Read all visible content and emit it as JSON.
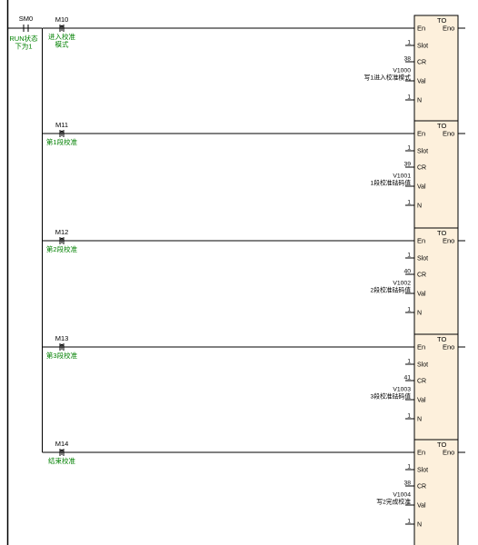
{
  "left_contact": {
    "name": "SM0",
    "comment_lines": [
      "RUN状态",
      "下为1"
    ]
  },
  "rungs": [
    {
      "contact": "M10",
      "comment_lines": [
        "进入校准",
        "模式"
      ],
      "block": {
        "title": "TO",
        "en": "En",
        "eno": "Eno",
        "pins": [
          {
            "label": "Slot",
            "values": [
              "1"
            ]
          },
          {
            "label": "CR",
            "values": [
              "38"
            ]
          },
          {
            "label": "Val",
            "values": [
              "V1000",
              "写1进入校准模式"
            ]
          },
          {
            "label": "N",
            "values": [
              "1"
            ]
          }
        ]
      }
    },
    {
      "contact": "M11",
      "comment_lines": [
        "第1段校准"
      ],
      "block": {
        "title": "TO",
        "en": "En",
        "eno": "Eno",
        "pins": [
          {
            "label": "Slot",
            "values": [
              "1"
            ]
          },
          {
            "label": "CR",
            "values": [
              "39"
            ]
          },
          {
            "label": "Val",
            "values": [
              "V1001",
              "1段校准砝码值"
            ]
          },
          {
            "label": "N",
            "values": [
              "1"
            ]
          }
        ]
      }
    },
    {
      "contact": "M12",
      "comment_lines": [
        "第2段校准"
      ],
      "block": {
        "title": "TO",
        "en": "En",
        "eno": "Eno",
        "pins": [
          {
            "label": "Slot",
            "values": [
              "1"
            ]
          },
          {
            "label": "CR",
            "values": [
              "40"
            ]
          },
          {
            "label": "Val",
            "values": [
              "V1002",
              "2段校准砝码值"
            ]
          },
          {
            "label": "N",
            "values": [
              "1"
            ]
          }
        ]
      }
    },
    {
      "contact": "M13",
      "comment_lines": [
        "第3段校准"
      ],
      "block": {
        "title": "TO",
        "en": "En",
        "eno": "Eno",
        "pins": [
          {
            "label": "Slot",
            "values": [
              "1"
            ]
          },
          {
            "label": "CR",
            "values": [
              "41"
            ]
          },
          {
            "label": "Val",
            "values": [
              "V1003",
              "3段校准砝码值"
            ]
          },
          {
            "label": "N",
            "values": [
              "1"
            ]
          }
        ]
      }
    },
    {
      "contact": "M14",
      "comment_lines": [
        "结束校准"
      ],
      "block": {
        "title": "TO",
        "en": "En",
        "eno": "Eno",
        "pins": [
          {
            "label": "Slot",
            "values": [
              "1"
            ]
          },
          {
            "label": "CR",
            "values": [
              "38"
            ]
          },
          {
            "label": "Val",
            "values": [
              "V1004",
              "写2完成校准"
            ]
          },
          {
            "label": "N",
            "values": [
              "1"
            ]
          }
        ]
      }
    }
  ],
  "colors": {
    "comment": "#008000",
    "line": "#000000",
    "block_fill": "#fdf0dc",
    "block_border": "#000000"
  },
  "contact_type": "rising-edge"
}
